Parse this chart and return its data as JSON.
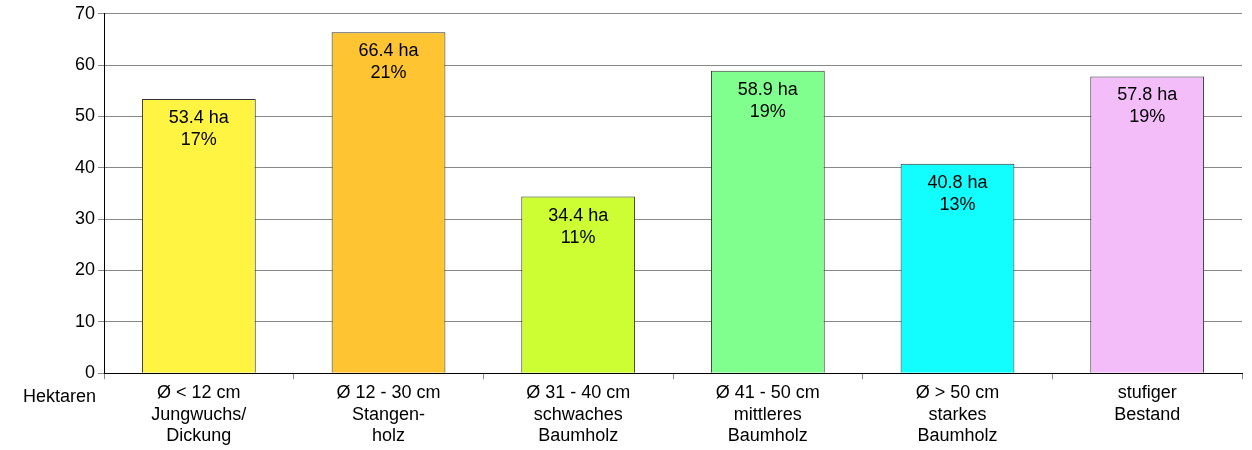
{
  "chart_data": {
    "type": "bar",
    "xlabel": "Hektaren",
    "categories": [
      "Ø < 12 cm\nJungwuchs/\nDickung",
      "Ø 12 - 30 cm\nStangen-\nholz",
      "Ø 31 - 40 cm\nschwaches\nBaumholz",
      "Ø 41 - 50 cm\nmittleres\nBaumholz",
      "Ø > 50 cm\nstarkes\nBaumholz",
      "stufiger\nBestand"
    ],
    "values": [
      53.4,
      66.4,
      34.4,
      58.9,
      40.8,
      57.8
    ],
    "colors": [
      "#fff442",
      "#fec432",
      "#ccfe33",
      "#80ff8f",
      "#12fefe",
      "#f2bdf9"
    ],
    "value_labels": [
      "53.4 ha\n17%",
      "66.4 ha\n21%",
      "34.4 ha\n11%",
      "58.9 ha\n19%",
      "40.8 ha\n13%",
      "57.8 ha\n19%"
    ],
    "ylim": [
      0,
      70
    ],
    "yticks": [
      0,
      10,
      20,
      30,
      40,
      50,
      60,
      70
    ],
    "grid": "y",
    "legend": false
  }
}
